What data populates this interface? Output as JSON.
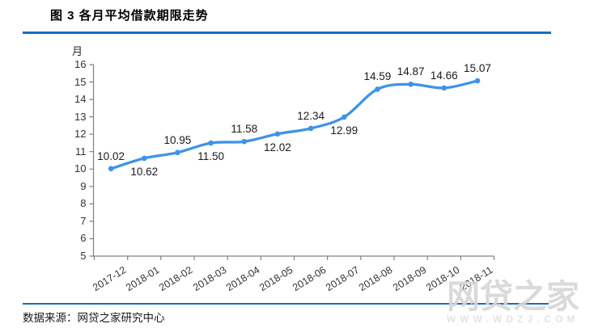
{
  "header": {
    "title": "图 3 各月平均借款期限走势"
  },
  "chart_data": {
    "type": "line",
    "title": "图 3 各月平均借款期限走势",
    "categories": [
      "2017-12",
      "2018-01",
      "2018-02",
      "2018-03",
      "2018-04",
      "2018-05",
      "2018-06",
      "2018-07",
      "2018-08",
      "2018-09",
      "2018-10",
      "2018-11"
    ],
    "values": [
      10.02,
      10.62,
      10.95,
      11.5,
      11.58,
      12.02,
      12.34,
      12.99,
      14.59,
      14.87,
      14.66,
      15.07
    ],
    "label_positions": [
      "above",
      "below",
      "above",
      "below",
      "above",
      "below",
      "above",
      "below",
      "above",
      "above",
      "above",
      "above"
    ],
    "xlabel": "",
    "ylabel": "月",
    "ylim": [
      5,
      16
    ],
    "ytick_step": 1,
    "grid": false,
    "legend_position": "none",
    "smoothed": true,
    "line_color": "#3f93e8",
    "marker_color": "#3f93e8",
    "axis_color": "#808080"
  },
  "footer": {
    "source": "数据来源：网贷之家研究中心"
  },
  "watermark": {
    "brand": "网贷之家",
    "url": "WWW.WDZJ.COM"
  },
  "colors": {
    "divider_blue": "#176bc7",
    "title_text": "#000000",
    "tick_text": "#333333",
    "watermark_gray": "#d7d7d7"
  }
}
